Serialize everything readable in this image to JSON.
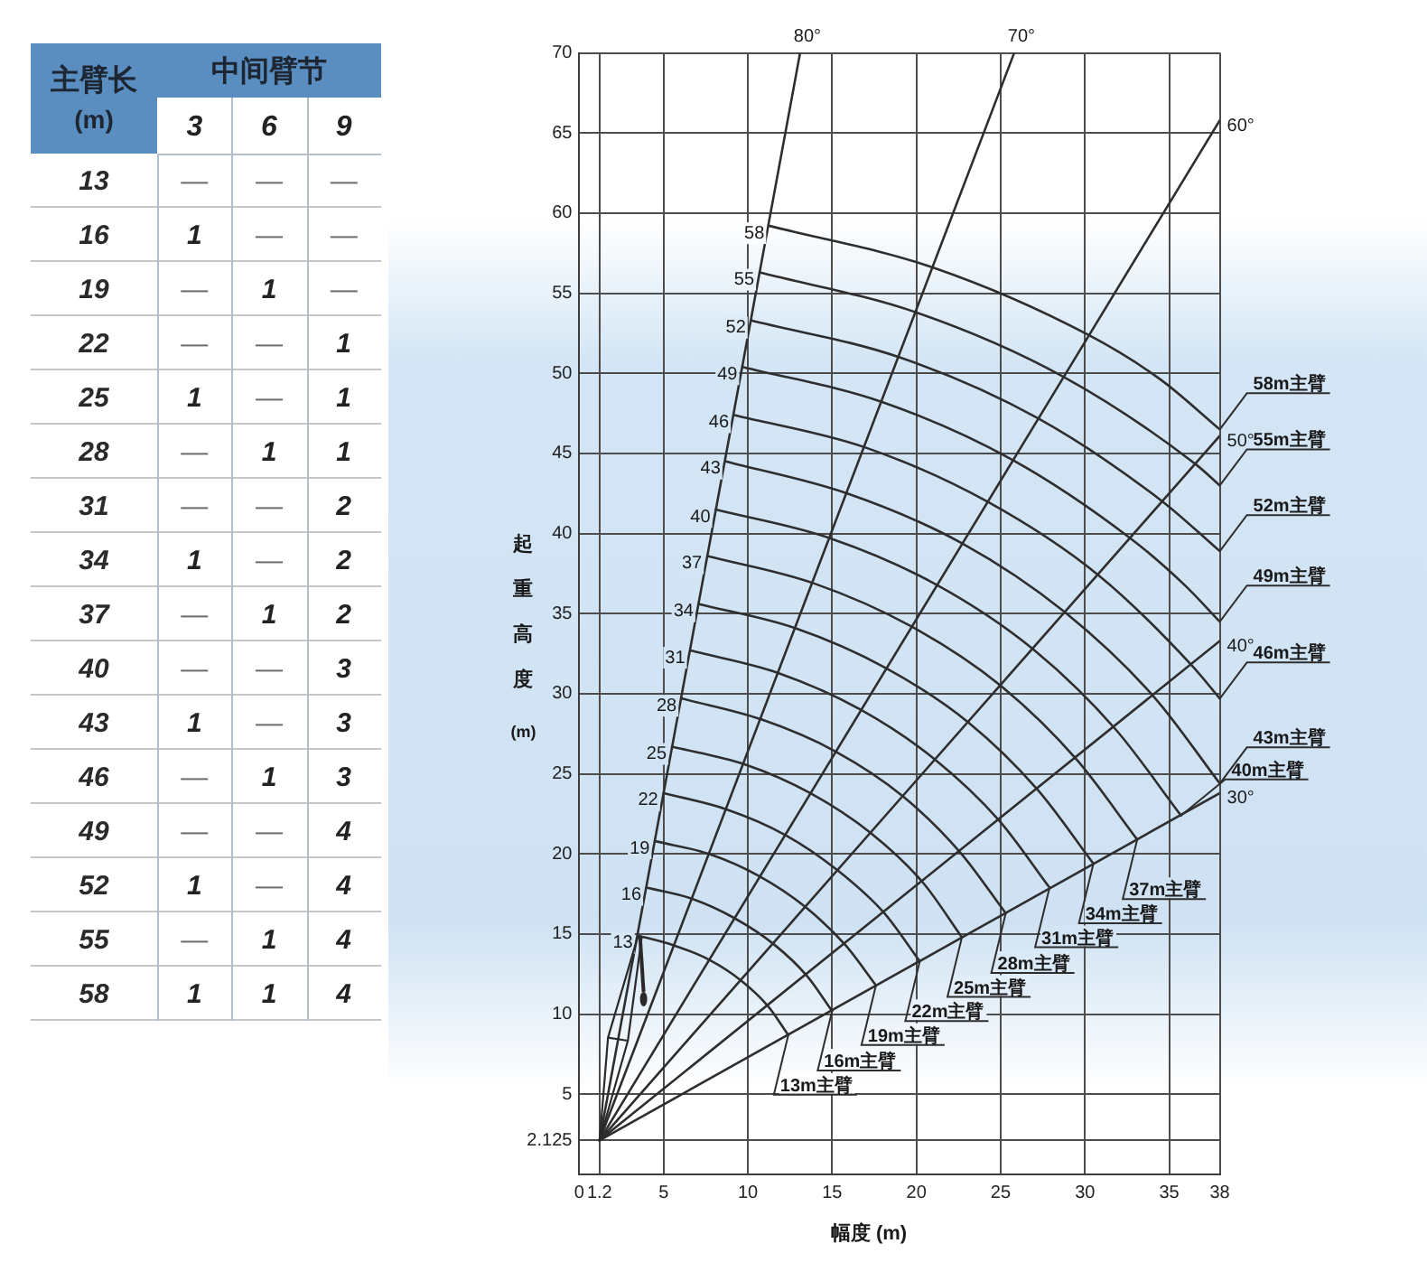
{
  "chart_data": [
    {
      "type": "heatmap",
      "xlabel": "中间臂节",
      "ylabel": "主臂长 (m)",
      "categories": [
        "3",
        "6",
        "9"
      ],
      "y_categories": [
        "13",
        "16",
        "19",
        "22",
        "25",
        "28",
        "31",
        "34",
        "37",
        "40",
        "43",
        "46",
        "49",
        "52",
        "55",
        "58"
      ],
      "cells": [
        [
          null,
          null,
          null
        ],
        [
          1,
          null,
          null
        ],
        [
          null,
          1,
          null
        ],
        [
          null,
          null,
          1
        ],
        [
          1,
          null,
          1
        ],
        [
          null,
          1,
          1
        ],
        [
          null,
          null,
          2
        ],
        [
          1,
          null,
          2
        ],
        [
          null,
          1,
          2
        ],
        [
          null,
          null,
          3
        ],
        [
          1,
          null,
          3
        ],
        [
          null,
          1,
          3
        ],
        [
          null,
          null,
          4
        ],
        [
          1,
          null,
          4
        ],
        [
          null,
          1,
          4
        ],
        [
          1,
          1,
          4
        ]
      ],
      "cell_labels": [
        [
          "—",
          "—",
          "—"
        ],
        [
          "1",
          "—",
          "—"
        ],
        [
          "—",
          "1",
          "—"
        ],
        [
          "—",
          "—",
          "1"
        ],
        [
          "1",
          "—",
          "1"
        ],
        [
          "—",
          "1",
          "1"
        ],
        [
          "—",
          "—",
          "2"
        ],
        [
          "1",
          "—",
          "2"
        ],
        [
          "—",
          "1",
          "2"
        ],
        [
          "—",
          "—",
          "3"
        ],
        [
          "1",
          "—",
          "3"
        ],
        [
          "—",
          "1",
          "3"
        ],
        [
          "—",
          "—",
          "4"
        ],
        [
          "1",
          "—",
          "4"
        ],
        [
          "—",
          "1",
          "4"
        ],
        [
          "1",
          "1",
          "4"
        ]
      ]
    },
    {
      "type": "line",
      "xlabel": "幅度 (m)",
      "ylabel": "起重高度 (m)",
      "xlim": [
        0,
        38
      ],
      "xticks": [
        0,
        1.2,
        5,
        10,
        15,
        20,
        25,
        30,
        35,
        38
      ],
      "ylim": [
        0,
        70
      ],
      "yticks": [
        2.125,
        5,
        10,
        15,
        20,
        25,
        30,
        35,
        40,
        45,
        50,
        55,
        60,
        65,
        70
      ],
      "grid": true,
      "marker": "none",
      "series": [
        {
          "name": "13m主臂",
          "color": "#2e2e2e",
          "x": [
            3.5,
            5.6,
            7.7,
            9.6,
            11.2,
            12.4
          ],
          "values": [
            14.9,
            14.3,
            13.4,
            12.1,
            10.5,
            8.7
          ]
        },
        {
          "name": "16m主臂",
          "color": "#2e2e2e",
          "x": [
            4.0,
            6.7,
            9.2,
            11.5,
            13.5,
            15.0
          ],
          "values": [
            17.9,
            17.2,
            16.0,
            14.4,
            12.4,
            10.2
          ]
        },
        {
          "name": "19m主臂",
          "color": "#2e2e2e",
          "x": [
            4.5,
            7.7,
            10.7,
            13.4,
            15.8,
            17.6
          ],
          "values": [
            20.8,
            20.0,
            18.6,
            16.7,
            14.3,
            11.8
          ]
        },
        {
          "name": "22m主臂",
          "color": "#2e2e2e",
          "x": [
            5.0,
            8.7,
            12.2,
            15.3,
            18.1,
            20.2
          ],
          "values": [
            23.8,
            22.8,
            21.2,
            19.0,
            16.3,
            13.3
          ]
        },
        {
          "name": "25m主臂",
          "color": "#2e2e2e",
          "x": [
            5.5,
            9.8,
            13.7,
            17.3,
            20.4,
            22.7
          ],
          "values": [
            26.7,
            25.6,
            23.8,
            21.3,
            18.2,
            14.8
          ]
        },
        {
          "name": "28m主臂",
          "color": "#2e2e2e",
          "x": [
            6.1,
            10.8,
            15.2,
            19.2,
            22.6,
            25.3
          ],
          "values": [
            29.7,
            28.4,
            26.4,
            23.6,
            20.1,
            16.3
          ]
        },
        {
          "name": "31m主臂",
          "color": "#2e2e2e",
          "x": [
            6.6,
            11.8,
            16.7,
            21.1,
            24.9,
            27.9
          ],
          "values": [
            32.7,
            31.3,
            29.0,
            25.9,
            22.1,
            17.9
          ]
        },
        {
          "name": "34m主臂",
          "color": "#2e2e2e",
          "x": [
            7.1,
            12.8,
            18.2,
            23.1,
            27.2,
            30.5
          ],
          "values": [
            35.6,
            34.1,
            31.6,
            28.2,
            24.0,
            19.4
          ]
        },
        {
          "name": "37m主臂",
          "color": "#2e2e2e",
          "x": [
            7.6,
            13.9,
            19.7,
            25.0,
            29.5,
            33.1
          ],
          "values": [
            38.6,
            36.9,
            34.2,
            30.5,
            25.9,
            20.9
          ]
        },
        {
          "name": "40m主臂",
          "color": "#2e2e2e",
          "x": [
            8.1,
            14.9,
            21.2,
            26.9,
            31.8,
            35.7
          ],
          "values": [
            41.5,
            39.7,
            36.8,
            32.8,
            27.8,
            22.4
          ]
        },
        {
          "name": "43m主臂",
          "color": "#2e2e2e",
          "x": [
            8.7,
            15.9,
            22.7,
            28.8,
            34.1,
            38
          ],
          "values": [
            44.5,
            42.5,
            39.4,
            35.1,
            29.8,
            24.4
          ]
        },
        {
          "name": "46m主臂",
          "color": "#2e2e2e",
          "x": [
            9.2,
            16.9,
            24.2,
            30.8,
            36.4,
            38
          ],
          "values": [
            47.4,
            45.4,
            42.0,
            37.4,
            31.7,
            29.7
          ]
        },
        {
          "name": "49m主臂",
          "color": "#2e2e2e",
          "x": [
            9.7,
            18.0,
            25.7,
            32.7,
            35.9,
            38
          ],
          "values": [
            50.4,
            48.2,
            44.6,
            39.7,
            36.8,
            34.5
          ]
        },
        {
          "name": "52m主臂",
          "color": "#2e2e2e",
          "x": [
            10.2,
            19.0,
            27.2,
            34.6,
            38
          ],
          "values": [
            53.3,
            51.0,
            47.2,
            42.0,
            38.9
          ]
        },
        {
          "name": "55m主臂",
          "color": "#2e2e2e",
          "x": [
            10.7,
            20.0,
            28.7,
            36.6,
            38
          ],
          "values": [
            56.3,
            53.8,
            49.8,
            44.3,
            43.0
          ]
        },
        {
          "name": "58m主臂",
          "color": "#2e2e2e",
          "x": [
            11.3,
            21.0,
            30.2,
            34.5,
            38
          ],
          "values": [
            59.2,
            56.6,
            52.4,
            49.6,
            46.5
          ]
        },
        {
          "name": "80°",
          "color": "#2e2e2e",
          "x": [
            1.2,
            13.1
          ],
          "values": [
            2.125,
            70
          ]
        },
        {
          "name": "70°",
          "color": "#2e2e2e",
          "x": [
            1.2,
            25.8
          ],
          "values": [
            2.125,
            70
          ]
        },
        {
          "name": "60°",
          "color": "#2e2e2e",
          "x": [
            1.2,
            38
          ],
          "values": [
            2.125,
            65.8
          ]
        },
        {
          "name": "50°",
          "color": "#2e2e2e",
          "x": [
            1.2,
            38
          ],
          "values": [
            2.125,
            46.1
          ]
        },
        {
          "name": "40°",
          "color": "#2e2e2e",
          "x": [
            1.2,
            38
          ],
          "values": [
            2.125,
            33.3
          ]
        },
        {
          "name": "30°",
          "color": "#2e2e2e",
          "x": [
            1.2,
            38
          ],
          "values": [
            2.125,
            23.8
          ]
        }
      ],
      "annotations": [
        {
          "text": "13",
          "x": 3.5,
          "y": 14.9
        },
        {
          "text": "16",
          "x": 4.0,
          "y": 17.9
        },
        {
          "text": "19",
          "x": 4.5,
          "y": 20.8
        },
        {
          "text": "22",
          "x": 5.0,
          "y": 23.8
        },
        {
          "text": "25",
          "x": 5.5,
          "y": 26.7
        },
        {
          "text": "28",
          "x": 6.1,
          "y": 29.7
        },
        {
          "text": "31",
          "x": 6.6,
          "y": 32.7
        },
        {
          "text": "34",
          "x": 7.1,
          "y": 35.6
        },
        {
          "text": "37",
          "x": 7.6,
          "y": 38.6
        },
        {
          "text": "40",
          "x": 8.1,
          "y": 41.5
        },
        {
          "text": "43",
          "x": 8.7,
          "y": 44.5
        },
        {
          "text": "46",
          "x": 9.2,
          "y": 47.4
        },
        {
          "text": "49",
          "x": 9.7,
          "y": 50.4
        },
        {
          "text": "52",
          "x": 10.2,
          "y": 53.3
        },
        {
          "text": "55",
          "x": 10.7,
          "y": 56.3
        },
        {
          "text": "58",
          "x": 11.3,
          "y": 59.2
        }
      ]
    }
  ]
}
